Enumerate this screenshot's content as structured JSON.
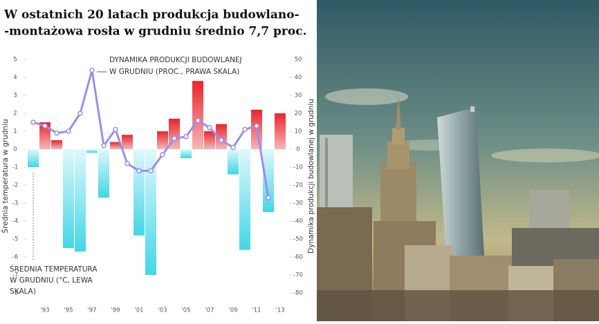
{
  "chart_data": {
    "type": "bar_line",
    "title": [
      "W ostatnich 20 latach produkcja budowlano-",
      "-montażowa rosła w grudniu średnio 7,7 proc."
    ],
    "ylabel": "Średnia temperatura w grudniu",
    "y2label": "Dynamika produkcji budowlanej w grudniu",
    "annotations": [
      [
        "DYNAMIKA PRODUKCJI BUDOWLANEJ",
        "W GRUDNIU (PROC., PRAWA SKALA)"
      ],
      [
        "ŚREDNIA TEMPERATURA",
        "W GRUDNIU (°C, LEWA",
        "SKALA)"
      ]
    ],
    "categories": [
      null,
      "'93",
      null,
      "'95",
      null,
      "'97",
      null,
      "'99",
      null,
      "'01",
      null,
      "'03",
      null,
      "'05",
      null,
      "'07",
      null,
      "'09",
      null,
      "'11",
      null,
      "'13"
    ],
    "series": [
      {
        "type": "bar",
        "color": "#e8262c",
        "negative_color": "#43d6e6",
        "values": [
          -1.0,
          1.5,
          0.5,
          -5.5,
          -5.7,
          -0.2,
          -2.7,
          0.4,
          0.8,
          -4.8,
          -7.0,
          1.0,
          1.7,
          -0.5,
          3.8,
          1.0,
          1.4,
          -1.4,
          -5.6,
          2.2,
          -3.5,
          2.0
        ]
      },
      {
        "type": "line",
        "axis": "y2",
        "color": "#9b8ded",
        "values": [
          15,
          13,
          9,
          10,
          20,
          44,
          2,
          11,
          -8,
          -12,
          -12,
          -3,
          6,
          7,
          16,
          12,
          5,
          1,
          11,
          13,
          -27,
          null
        ]
      }
    ],
    "ylim": [
      -8,
      5
    ],
    "yticks": [
      5,
      4,
      3,
      2,
      1,
      0,
      -1,
      -2,
      -3,
      -4,
      -5,
      -6,
      -7,
      -8
    ],
    "y2lim": [
      -80,
      50
    ],
    "y2ticks": [
      50,
      40,
      30,
      20,
      10,
      0,
      -10,
      -20,
      -30,
      -40,
      -50,
      -60,
      -70,
      -80
    ],
    "grid": false
  }
}
